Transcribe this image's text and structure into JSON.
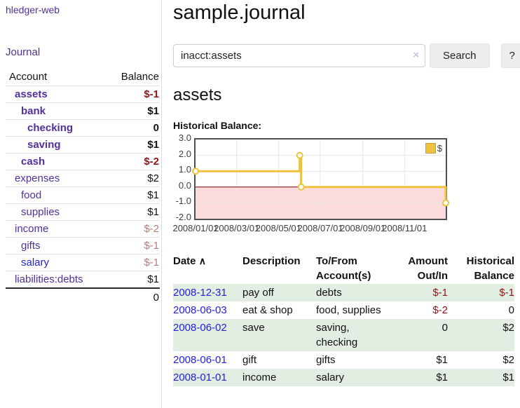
{
  "app": {
    "brand": "hledger-web",
    "nav_journal": "Journal"
  },
  "sidebar": {
    "accounts_table": {
      "account_header": "Account",
      "balance_header": "Balance",
      "rows": [
        {
          "name": "assets",
          "balance": "$-1",
          "indent": 1,
          "bold": true,
          "neg": "strong"
        },
        {
          "name": "bank",
          "balance": "$1",
          "indent": 2,
          "bold": true,
          "neg": ""
        },
        {
          "name": "checking",
          "balance": "0",
          "indent": 3,
          "bold": true,
          "neg": ""
        },
        {
          "name": "saving",
          "balance": "$1",
          "indent": 3,
          "bold": true,
          "neg": ""
        },
        {
          "name": "cash",
          "balance": "$-2",
          "indent": 2,
          "bold": true,
          "neg": "strong"
        },
        {
          "name": "expenses",
          "balance": "$2",
          "indent": 1,
          "bold": false,
          "neg": ""
        },
        {
          "name": "food",
          "balance": "$1",
          "indent": 2,
          "bold": false,
          "neg": ""
        },
        {
          "name": "supplies",
          "balance": "$1",
          "indent": 2,
          "bold": false,
          "neg": ""
        },
        {
          "name": "income",
          "balance": "$-2",
          "indent": 1,
          "bold": false,
          "neg": "muted"
        },
        {
          "name": "gifts",
          "balance": "$-1",
          "indent": 2,
          "bold": false,
          "neg": "muted"
        },
        {
          "name": "salary",
          "balance": "$-1",
          "indent": 2,
          "bold": false,
          "neg": "muted",
          "link_color": "blue"
        },
        {
          "name": "liabilities:debts",
          "balance": "$1",
          "indent": 1,
          "bold": false,
          "neg": ""
        }
      ],
      "total": "0"
    }
  },
  "main": {
    "title": "sample.journal",
    "search": {
      "value": "inacct:assets",
      "clear_icon": "×",
      "search_button": "Search",
      "help_button": "?"
    },
    "account_heading": "assets",
    "chart_title": "Historical Balance:"
  },
  "chart_data": {
    "type": "line",
    "title": "Historical Balance:",
    "step": true,
    "x_start": "2008-01-01",
    "x_end": "2008-12-31",
    "series": [
      {
        "name": "$",
        "color": "#edc240",
        "points": [
          {
            "date": "2008-01-01",
            "value": 1
          },
          {
            "date": "2008-06-01",
            "value": 2
          },
          {
            "date": "2008-06-03",
            "value": 0
          },
          {
            "date": "2008-12-31",
            "value": -1
          }
        ]
      }
    ],
    "ylim": [
      -2,
      3
    ],
    "ytick_labels": [
      "3.0",
      "2.0",
      "1.0",
      "0.0",
      "-1.0",
      "-2.0"
    ],
    "xtick_labels": [
      "2008/01/01",
      "2008/03/01",
      "2008/05/01",
      "2008/07/01",
      "2008/09/01",
      "2008/11/01"
    ],
    "legend": [
      {
        "label": "$",
        "color": "#edc240"
      }
    ],
    "grid": true,
    "legend_position": "top-right",
    "negative_region": true
  },
  "register": {
    "headers": {
      "date": "Date",
      "sort_icon": "∧",
      "description": "Description",
      "tofrom": "To/From Account(s)",
      "amount": "Amount Out/In",
      "balance": "Historical Balance"
    },
    "rows": [
      {
        "date": "2008-12-31",
        "description": "pay off",
        "tofrom": "debts",
        "amount": "$-1",
        "balance": "$-1",
        "amount_neg": true,
        "balance_neg": true
      },
      {
        "date": "2008-06-03",
        "description": "eat & shop",
        "tofrom": "food, supplies",
        "amount": "$-2",
        "balance": "0",
        "amount_neg": true,
        "balance_neg": false
      },
      {
        "date": "2008-06-02",
        "description": "save",
        "tofrom": "saving, checking",
        "amount": "0",
        "balance": "$2",
        "amount_neg": false,
        "balance_neg": false
      },
      {
        "date": "2008-06-01",
        "description": "gift",
        "tofrom": "gifts",
        "amount": "$1",
        "balance": "$2",
        "amount_neg": false,
        "balance_neg": false
      },
      {
        "date": "2008-01-01",
        "description": "income",
        "tofrom": "salary",
        "amount": "$1",
        "balance": "$1",
        "amount_neg": false,
        "balance_neg": false
      }
    ]
  },
  "colors": {
    "link_purple": "#50309b",
    "link_blue": "#2222cc",
    "negative_strong": "#8f1515",
    "negative_muted": "#b97b7b",
    "stripe_green": "#e1eee1",
    "chart_line": "#edc240",
    "chart_negative_fill": "#fbdbdb",
    "chart_zero_line": "#7f0000",
    "chart_grid": "#e5e5e5"
  }
}
